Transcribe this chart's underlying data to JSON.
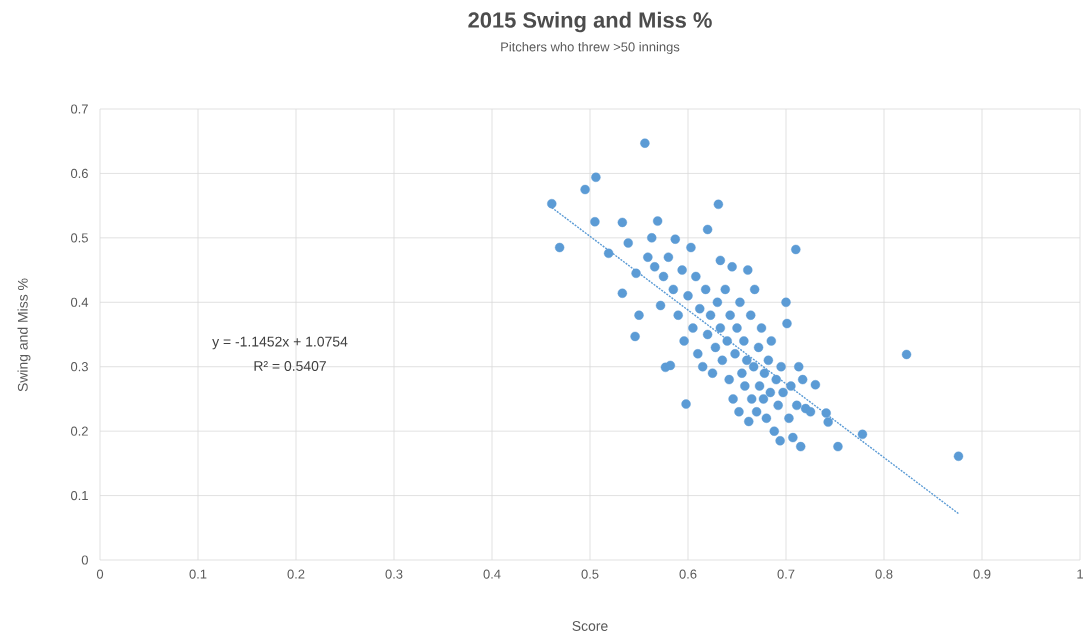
{
  "chart_data": {
    "type": "scatter",
    "title": "2015 Swing and Miss %",
    "subtitle": "Pitchers who threw >50 innings",
    "xlabel": "Score",
    "ylabel": "Swing and Miss %",
    "annotations": [
      "y = -1.1452x + 1.0754",
      "R² = 0.5407"
    ],
    "xlim": [
      0,
      1
    ],
    "ylim": [
      0,
      0.7
    ],
    "xticks": [
      0,
      0.1,
      0.2,
      0.3,
      0.4,
      0.5,
      0.6,
      0.7,
      0.8,
      0.9,
      1
    ],
    "yticks": [
      0,
      0.1,
      0.2,
      0.3,
      0.4,
      0.5,
      0.6,
      0.7
    ],
    "grid": true,
    "marker": "circle",
    "series": [
      {
        "color": "#5b9bd5",
        "x": [
          0.461,
          0.469,
          0.495,
          0.506,
          0.505,
          0.519,
          0.533,
          0.533,
          0.539,
          0.546,
          0.55,
          0.547,
          0.556,
          0.559,
          0.563,
          0.566,
          0.569,
          0.572,
          0.575,
          0.577,
          0.582,
          0.58,
          0.585,
          0.587,
          0.59,
          0.594,
          0.596,
          0.598,
          0.6,
          0.603,
          0.605,
          0.608,
          0.61,
          0.612,
          0.615,
          0.618,
          0.62,
          0.62,
          0.623,
          0.625,
          0.628,
          0.63,
          0.631,
          0.633,
          0.633,
          0.635,
          0.638,
          0.64,
          0.642,
          0.643,
          0.645,
          0.646,
          0.648,
          0.65,
          0.652,
          0.653,
          0.655,
          0.657,
          0.658,
          0.66,
          0.661,
          0.662,
          0.664,
          0.665,
          0.667,
          0.668,
          0.67,
          0.672,
          0.673,
          0.675,
          0.677,
          0.678,
          0.68,
          0.682,
          0.684,
          0.685,
          0.688,
          0.69,
          0.692,
          0.694,
          0.695,
          0.697,
          0.7,
          0.701,
          0.703,
          0.705,
          0.707,
          0.71,
          0.711,
          0.713,
          0.715,
          0.717,
          0.72,
          0.725,
          0.73,
          0.741,
          0.743,
          0.753,
          0.778,
          0.823,
          0.876
        ],
        "values": [
          0.553,
          0.485,
          0.575,
          0.594,
          0.525,
          0.476,
          0.524,
          0.414,
          0.492,
          0.347,
          0.38,
          0.445,
          0.647,
          0.47,
          0.5,
          0.455,
          0.526,
          0.395,
          0.44,
          0.299,
          0.302,
          0.47,
          0.42,
          0.498,
          0.38,
          0.45,
          0.34,
          0.242,
          0.41,
          0.485,
          0.36,
          0.44,
          0.32,
          0.39,
          0.3,
          0.42,
          0.513,
          0.35,
          0.38,
          0.29,
          0.33,
          0.4,
          0.552,
          0.465,
          0.36,
          0.31,
          0.42,
          0.34,
          0.28,
          0.38,
          0.455,
          0.25,
          0.32,
          0.36,
          0.23,
          0.4,
          0.29,
          0.34,
          0.27,
          0.31,
          0.45,
          0.215,
          0.38,
          0.25,
          0.3,
          0.42,
          0.23,
          0.33,
          0.27,
          0.36,
          0.25,
          0.29,
          0.22,
          0.31,
          0.26,
          0.34,
          0.2,
          0.28,
          0.24,
          0.185,
          0.3,
          0.26,
          0.4,
          0.367,
          0.22,
          0.27,
          0.19,
          0.482,
          0.24,
          0.3,
          0.176,
          0.28,
          0.235,
          0.23,
          0.272,
          0.228,
          0.214,
          0.176,
          0.195,
          0.319,
          0.161
        ]
      },
      {
        "type": "line",
        "color": "#5b9bd5",
        "line_style": "dotted",
        "marker": "none",
        "x": [
          0.461,
          0.876
        ],
        "values": [
          0.547,
          0.072
        ]
      }
    ]
  }
}
